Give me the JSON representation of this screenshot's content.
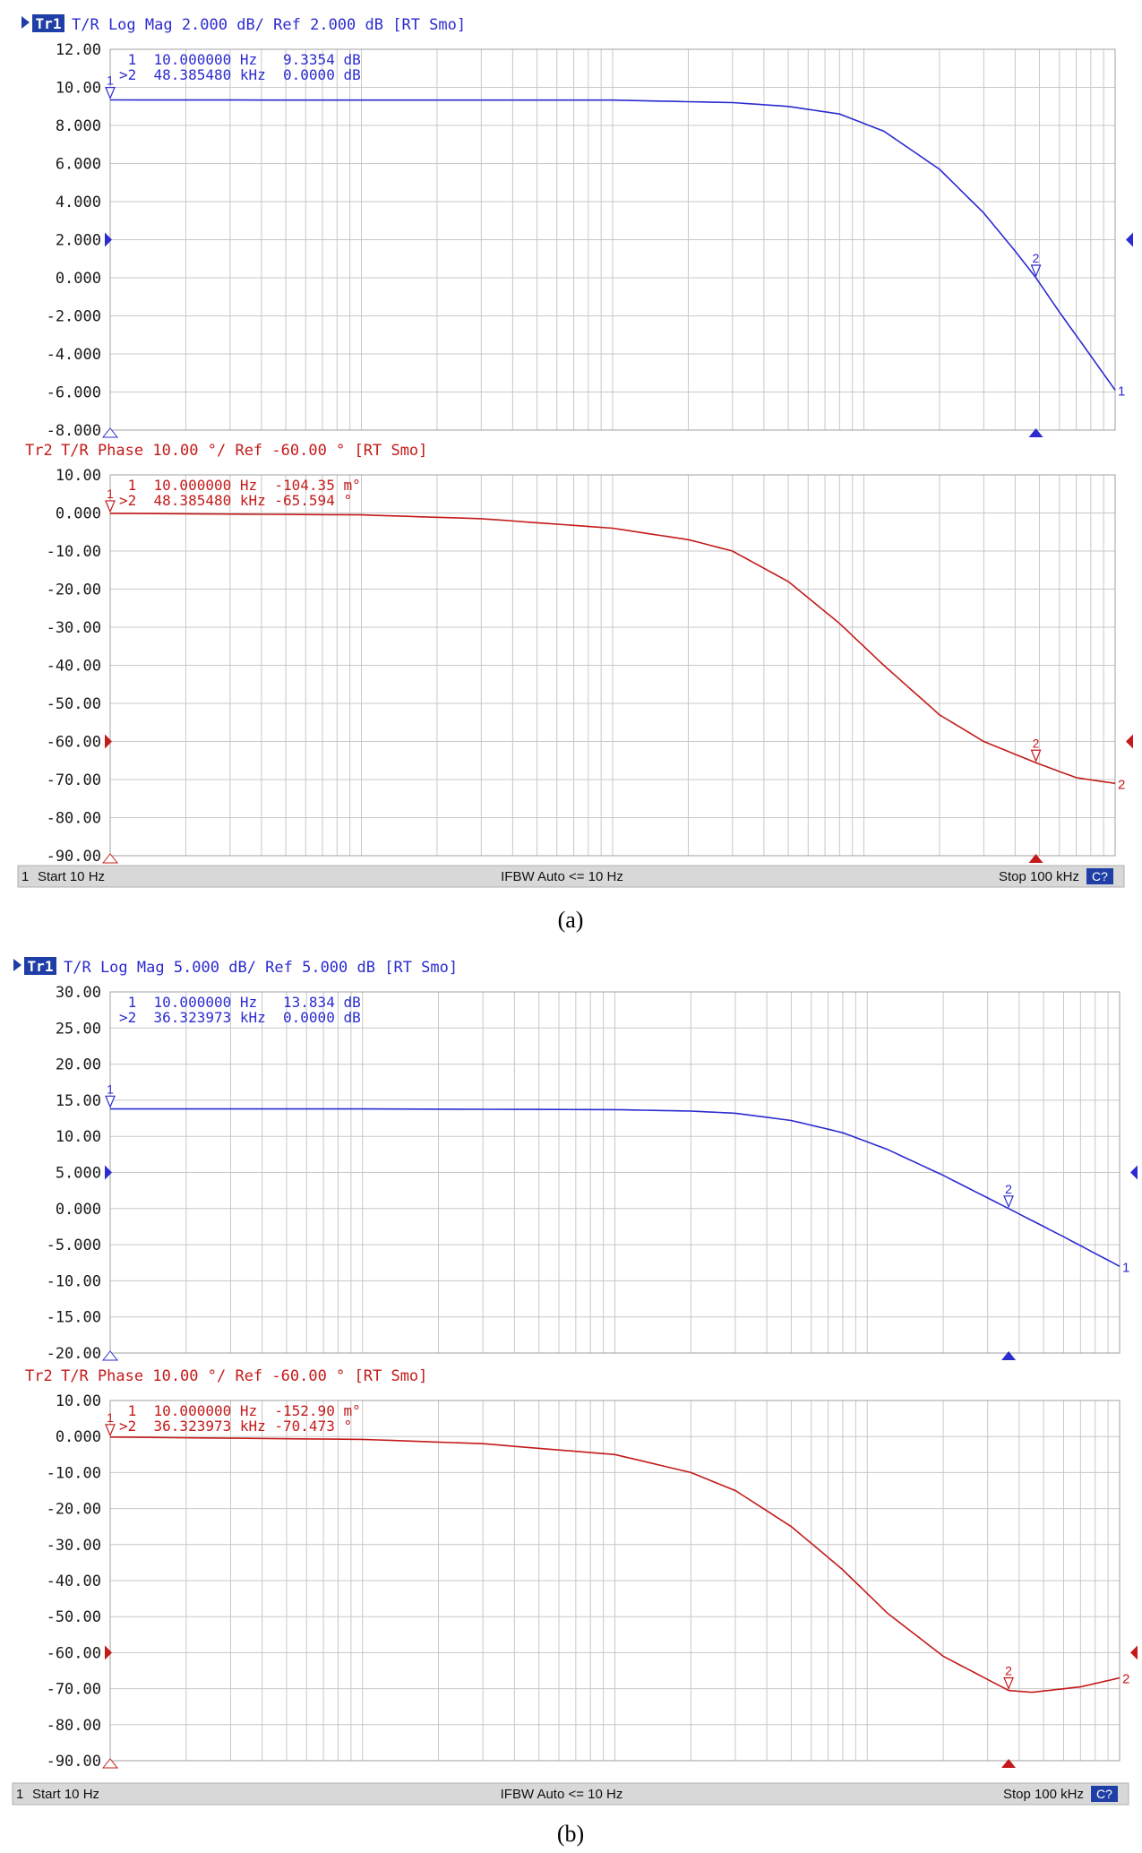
{
  "colors": {
    "trace1": "#2b2bd0",
    "trace2": "#c41a1a",
    "grid": "#c8c8c8",
    "axis_text": "#1a1a1a",
    "status_bg": "#d8d8d8",
    "badge_bg": "#1f3fa6"
  },
  "panels": [
    {
      "caption": "(a)",
      "status": {
        "channel": "1",
        "start": "Start 10 Hz",
        "ifbw": "IFBW Auto <= 10 Hz",
        "stop": "Stop 100 kHz",
        "badge": "C?"
      },
      "x_axis": {
        "scale": "log",
        "start_hz": 10,
        "stop_hz": 100000
      }
    },
    {
      "caption": "(b)",
      "status": {
        "channel": "1",
        "start": "Start 10 Hz",
        "ifbw": "IFBW Auto <= 10 Hz",
        "stop": "Stop 100 kHz",
        "badge": "C?"
      },
      "x_axis": {
        "scale": "log",
        "start_hz": 10,
        "stop_hz": 100000
      }
    }
  ],
  "chart_data": [
    {
      "type": "line",
      "panel": "a",
      "trace": "Tr1",
      "header": "T/R Log Mag 2.000 dB/ Ref 2.000 dB [RT Smo]",
      "ylim": [
        -8,
        12
      ],
      "ref": 2,
      "yticks": [
        "12.00",
        "10.00",
        "8.000",
        "6.000",
        "4.000",
        "2.000",
        "0.000",
        "-2.000",
        "-4.000",
        "-6.000",
        "-8.000"
      ],
      "markers": [
        {
          "line": "1",
          "row": " 1  10.000000 Hz   9.3354 dB",
          "x": 10,
          "y": 9.3354
        },
        {
          "line": "2",
          "row": ">2  48.385480 kHz  0.0000 dB",
          "x": 48385.48,
          "y": 0.0
        }
      ],
      "x": [
        10,
        100,
        1000,
        3000,
        5000,
        8000,
        12000,
        20000,
        30000,
        40000,
        48385,
        60000,
        80000,
        100000
      ],
      "y": [
        9.34,
        9.33,
        9.33,
        9.2,
        9.0,
        8.6,
        7.7,
        5.7,
        3.4,
        1.4,
        0.0,
        -1.8,
        -4.1,
        -5.9
      ]
    },
    {
      "type": "line",
      "panel": "a",
      "trace": "Tr2",
      "header": "T/R Phase 10.00 °/ Ref -60.00 ° [RT Smo]",
      "ylim": [
        -90,
        10
      ],
      "ref": -60,
      "yticks": [
        "10.00",
        "0.000",
        "-10.00",
        "-20.00",
        "-30.00",
        "-40.00",
        "-50.00",
        "-60.00",
        "-70.00",
        "-80.00",
        "-90.00"
      ],
      "markers": [
        {
          "line": "1",
          "row": " 1  10.000000 Hz  -104.35 m°",
          "x": 10,
          "y": -0.10435
        },
        {
          "line": "2",
          "row": ">2  48.385480 kHz -65.594 °",
          "x": 48385.48,
          "y": -65.594
        }
      ],
      "x": [
        10,
        100,
        300,
        1000,
        2000,
        3000,
        5000,
        8000,
        12000,
        20000,
        30000,
        48385,
        70000,
        100000
      ],
      "y": [
        -0.1,
        -0.5,
        -1.5,
        -4.0,
        -7.0,
        -10.0,
        -18.0,
        -29.0,
        -40.0,
        -53.0,
        -60.0,
        -65.6,
        -69.5,
        -71.0
      ]
    },
    {
      "type": "line",
      "panel": "b",
      "trace": "Tr1",
      "header": "T/R Log Mag 5.000 dB/ Ref 5.000 dB [RT Smo]",
      "ylim": [
        -20,
        30
      ],
      "ref": 5,
      "yticks": [
        "30.00",
        "25.00",
        "20.00",
        "15.00",
        "10.00",
        "5.000",
        "0.000",
        "-5.000",
        "-10.00",
        "-15.00",
        "-20.00"
      ],
      "markers": [
        {
          "line": "1",
          "row": " 1  10.000000 Hz   13.834 dB",
          "x": 10,
          "y": 13.834
        },
        {
          "line": "2",
          "row": ">2  36.323973 kHz  0.0000 dB",
          "x": 36323.973,
          "y": 0.0
        }
      ],
      "x": [
        10,
        100,
        1000,
        2000,
        3000,
        5000,
        8000,
        12000,
        20000,
        36324,
        60000,
        100000
      ],
      "y": [
        13.8,
        13.8,
        13.7,
        13.5,
        13.2,
        12.2,
        10.5,
        8.2,
        4.6,
        0.0,
        -3.9,
        -8.0
      ]
    },
    {
      "type": "line",
      "panel": "b",
      "trace": "Tr2",
      "header": "T/R Phase 10.00 °/ Ref -60.00 ° [RT Smo]",
      "ylim": [
        -90,
        10
      ],
      "ref": -60,
      "yticks": [
        "10.00",
        "0.000",
        "-10.00",
        "-20.00",
        "-30.00",
        "-40.00",
        "-50.00",
        "-60.00",
        "-70.00",
        "-80.00",
        "-90.00"
      ],
      "markers": [
        {
          "line": "1",
          "row": " 1  10.000000 Hz  -152.90 m°",
          "x": 10,
          "y": -0.1529
        },
        {
          "line": "2",
          "row": ">2  36.323973 kHz -70.473 °",
          "x": 36323.973,
          "y": -70.473
        }
      ],
      "x": [
        10,
        100,
        300,
        1000,
        2000,
        3000,
        5000,
        8000,
        12000,
        20000,
        36324,
        45000,
        70000,
        100000
      ],
      "y": [
        -0.15,
        -0.8,
        -2.0,
        -5.0,
        -10.0,
        -15.0,
        -25.0,
        -37.0,
        -49.0,
        -61.0,
        -70.5,
        -71.0,
        -69.5,
        -67.0
      ]
    }
  ]
}
